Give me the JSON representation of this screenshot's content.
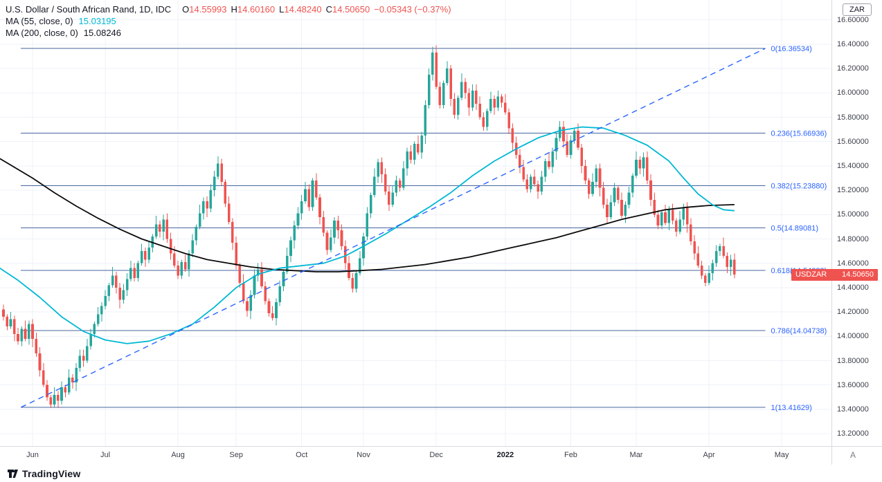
{
  "header": {
    "symbol_title": "U.S. Dollar / South African Rand, 1D, IDC",
    "ohlc": {
      "open_label": "O",
      "open": "14.55993",
      "high_label": "H",
      "high": "14.60160",
      "low_label": "L",
      "low": "14.48240",
      "close_label": "C",
      "close": "14.50650",
      "change": "−0.05343 (−0.37%)"
    },
    "ma55_label": "MA (55, close, 0)",
    "ma55_value": "15.03195",
    "ma200_label": "MA (200, close, 0)",
    "ma200_value": "15.08246"
  },
  "price_axis": {
    "currency_badge": "ZAR",
    "auto_button": "A",
    "labels": [
      "16.60000",
      "16.40000",
      "16.20000",
      "16.00000",
      "15.80000",
      "15.60000",
      "15.40000",
      "15.20000",
      "15.00000",
      "14.80000",
      "14.60000",
      "14.40000",
      "14.20000",
      "14.00000",
      "13.80000",
      "13.60000",
      "13.40000",
      "13.20000"
    ],
    "price_label": {
      "symbol": "USDZAR",
      "price": "14.50650"
    }
  },
  "footer": {
    "brand": "TradingView"
  },
  "chart_data": {
    "type": "candlestick",
    "title": "U.S. Dollar / South African Rand",
    "symbol": "USDZAR",
    "timeframe": "1D",
    "exchange": "IDC",
    "last": {
      "open": 14.55993,
      "high": 14.6016,
      "low": 14.4824,
      "close": 14.5065,
      "change": -0.05343,
      "change_pct": -0.37
    },
    "last_price": 14.5065,
    "y_axis": {
      "min": 13.1,
      "max": 16.7,
      "tick_step": 0.2
    },
    "x_axis_months": [
      {
        "label": "Jun",
        "index": 8,
        "emphasis": false
      },
      {
        "label": "Jul",
        "index": 28,
        "emphasis": false
      },
      {
        "label": "Aug",
        "index": 48,
        "emphasis": false
      },
      {
        "label": "Sep",
        "index": 64,
        "emphasis": false
      },
      {
        "label": "Oct",
        "index": 82,
        "emphasis": false
      },
      {
        "label": "Nov",
        "index": 99,
        "emphasis": false
      },
      {
        "label": "Dec",
        "index": 119,
        "emphasis": false
      },
      {
        "label": "2022",
        "index": 138,
        "emphasis": true
      },
      {
        "label": "Feb",
        "index": 156,
        "emphasis": false
      },
      {
        "label": "Mar",
        "index": 174,
        "emphasis": false
      },
      {
        "label": "Apr",
        "index": 194,
        "emphasis": false
      },
      {
        "label": "May",
        "index": 214,
        "emphasis": false
      }
    ],
    "first_open": 14.22,
    "closes": [
      14.16,
      14.08,
      14.14,
      14.02,
      13.96,
      14.06,
      13.98,
      14.1,
      13.98,
      13.86,
      13.72,
      13.6,
      13.5,
      13.44,
      13.52,
      13.47,
      13.58,
      13.54,
      13.66,
      13.62,
      13.74,
      13.84,
      13.8,
      13.92,
      14.02,
      14.1,
      14.18,
      14.25,
      14.33,
      14.42,
      14.5,
      14.4,
      14.3,
      14.38,
      14.47,
      14.56,
      14.48,
      14.6,
      14.7,
      14.63,
      14.73,
      14.82,
      14.92,
      14.86,
      14.96,
      14.8,
      14.68,
      14.58,
      14.5,
      14.61,
      14.55,
      14.68,
      14.79,
      14.9,
      15.01,
      15.11,
      15.05,
      15.2,
      15.31,
      15.42,
      15.27,
      15.09,
      14.94,
      14.77,
      14.58,
      14.44,
      14.29,
      14.21,
      14.34,
      14.5,
      14.55,
      14.41,
      14.29,
      14.19,
      14.15,
      14.28,
      14.41,
      14.53,
      14.66,
      14.79,
      14.91,
      15.01,
      15.11,
      15.21,
      15.06,
      15.28,
      15.14,
      14.98,
      14.85,
      14.71,
      14.81,
      14.95,
      14.87,
      14.74,
      14.6,
      14.48,
      14.39,
      14.52,
      14.64,
      14.82,
      15.01,
      15.16,
      15.31,
      15.43,
      15.33,
      15.19,
      15.08,
      15.18,
      15.28,
      15.22,
      15.38,
      15.52,
      15.45,
      15.58,
      15.51,
      15.65,
      15.9,
      16.15,
      16.33,
      16.05,
      15.9,
      16.08,
      16.2,
      15.95,
      15.82,
      15.96,
      16.09,
      16.0,
      15.88,
      16.02,
      15.91,
      15.8,
      15.72,
      15.85,
      15.95,
      15.88,
      15.97,
      15.92,
      15.84,
      15.71,
      15.59,
      15.49,
      15.39,
      15.29,
      15.21,
      15.31,
      15.25,
      15.19,
      15.31,
      15.44,
      15.39,
      15.52,
      15.63,
      15.72,
      15.6,
      15.49,
      15.61,
      15.69,
      15.55,
      15.4,
      15.28,
      15.17,
      15.27,
      15.38,
      15.22,
      15.08,
      14.98,
      15.1,
      15.22,
      15.12,
      14.99,
      15.08,
      15.18,
      15.32,
      15.45,
      15.38,
      15.47,
      15.28,
      15.12,
      15.0,
      14.91,
      15.02,
      14.93,
      15.04,
      14.95,
      14.86,
      14.96,
      15.06,
      14.92,
      14.78,
      14.68,
      14.58,
      14.5,
      14.44,
      14.52,
      14.6,
      14.7,
      14.74,
      14.66,
      14.57,
      14.63,
      14.5065
    ],
    "wick_up_pattern": [
      0.04,
      0.02,
      0.06,
      0.03,
      0.05,
      0.02,
      0.07,
      0.03,
      0.04,
      0.05,
      0.05,
      0.06
    ],
    "wick_down_pattern": [
      0.03,
      0.03,
      0.02,
      0.06,
      0.03,
      0.04,
      0.02,
      0.05,
      0.07,
      0.03,
      0.05,
      0.02
    ],
    "ma55": {
      "period": 55,
      "value": 15.03195,
      "color": "#00b8d4",
      "points": [
        [
          -1,
          14.56
        ],
        [
          4,
          14.46
        ],
        [
          10,
          14.32
        ],
        [
          16,
          14.16
        ],
        [
          22,
          14.04
        ],
        [
          28,
          13.97
        ],
        [
          34,
          13.94
        ],
        [
          40,
          13.96
        ],
        [
          46,
          14.02
        ],
        [
          52,
          14.1
        ],
        [
          58,
          14.24
        ],
        [
          64,
          14.4
        ],
        [
          70,
          14.51
        ],
        [
          76,
          14.56
        ],
        [
          82,
          14.58
        ],
        [
          88,
          14.6
        ],
        [
          94,
          14.66
        ],
        [
          99,
          14.74
        ],
        [
          105,
          14.84
        ],
        [
          111,
          14.95
        ],
        [
          117,
          15.06
        ],
        [
          123,
          15.18
        ],
        [
          129,
          15.32
        ],
        [
          135,
          15.44
        ],
        [
          141,
          15.54
        ],
        [
          147,
          15.63
        ],
        [
          153,
          15.69
        ],
        [
          159,
          15.72
        ],
        [
          165,
          15.71
        ],
        [
          171,
          15.65
        ],
        [
          177,
          15.57
        ],
        [
          183,
          15.44
        ],
        [
          187,
          15.3
        ],
        [
          191,
          15.17
        ],
        [
          195,
          15.08
        ],
        [
          198,
          15.04
        ],
        [
          201,
          15.032
        ]
      ]
    },
    "ma200": {
      "period": 200,
      "value": 15.08246,
      "color": "#0a0a0a",
      "points": [
        [
          -1,
          15.46
        ],
        [
          8,
          15.3
        ],
        [
          14,
          15.18
        ],
        [
          20,
          15.07
        ],
        [
          26,
          14.97
        ],
        [
          32,
          14.88
        ],
        [
          38,
          14.8
        ],
        [
          44,
          14.74
        ],
        [
          50,
          14.68
        ],
        [
          56,
          14.63
        ],
        [
          62,
          14.6
        ],
        [
          68,
          14.57
        ],
        [
          74,
          14.55
        ],
        [
          80,
          14.54
        ],
        [
          86,
          14.53
        ],
        [
          92,
          14.53
        ],
        [
          98,
          14.54
        ],
        [
          104,
          14.55
        ],
        [
          110,
          14.57
        ],
        [
          116,
          14.59
        ],
        [
          122,
          14.62
        ],
        [
          128,
          14.65
        ],
        [
          134,
          14.69
        ],
        [
          140,
          14.73
        ],
        [
          146,
          14.77
        ],
        [
          152,
          14.81
        ],
        [
          158,
          14.86
        ],
        [
          164,
          14.91
        ],
        [
          170,
          14.96
        ],
        [
          176,
          15.0
        ],
        [
          182,
          15.04
        ],
        [
          188,
          15.06
        ],
        [
          194,
          15.075
        ],
        [
          201,
          15.082
        ]
      ]
    },
    "fib": {
      "start_index": 4.8,
      "end_index": 209.5,
      "levels": [
        {
          "ratio": 0,
          "price": 16.36534,
          "label": "0(16.36534)"
        },
        {
          "ratio": 0.236,
          "price": 15.66936,
          "label": "0.236(15.66936)"
        },
        {
          "ratio": 0.382,
          "price": 15.2388,
          "label": "0.382(15.23880)"
        },
        {
          "ratio": 0.5,
          "price": 14.89081,
          "label": "0.5(14.89081)"
        },
        {
          "ratio": 0.618,
          "price": 14.54283,
          "label": "0.618(14.54283)"
        },
        {
          "ratio": 0.786,
          "price": 14.04738,
          "label": "0.786(14.04738)"
        },
        {
          "ratio": 1,
          "price": 13.41629,
          "label": "1(13.41629)"
        }
      ]
    },
    "trendline": {
      "start_index": 4.8,
      "start_price": 13.41629,
      "end_index": 209.5,
      "end_price": 16.36534
    },
    "colors": {
      "up": "#26a69a",
      "down": "#ef5350",
      "grid": "#eef2f8",
      "fib_line": "#46649f",
      "fib_label": "#2962ff",
      "trendline": "#2962ff",
      "price_badge_bg": "#ef5350",
      "axis_text": "#3c404b"
    }
  }
}
